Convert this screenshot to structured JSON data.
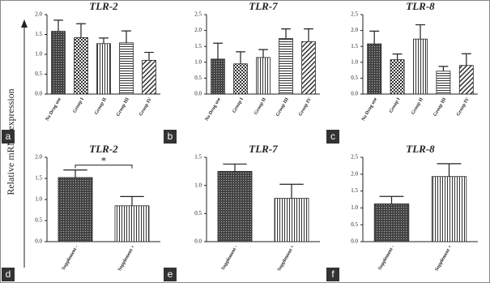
{
  "ylabel": "Relative mRNA expression",
  "chart_data": [
    {
      "type": "bar",
      "panel": "a",
      "title": "TLR-2",
      "categories": [
        "No Drug use",
        "Group I",
        "Group II",
        "Group III",
        "Group IV"
      ],
      "values": [
        1.58,
        1.42,
        1.27,
        1.29,
        0.85
      ],
      "errors": [
        0.28,
        0.35,
        0.14,
        0.3,
        0.2
      ],
      "ylim": [
        0,
        2
      ],
      "yticks": [
        {
          "value": 0,
          "label": "0.0"
        },
        0.5,
        {
          "value": 1,
          "label": "1.0"
        },
        1.5,
        {
          "value": 2,
          "label": "2.0"
        }
      ]
    },
    {
      "type": "bar",
      "panel": "b",
      "title": "TLR-7",
      "categories": [
        "No Drug use",
        "Group I",
        "Group II",
        "Group III",
        "Group IV"
      ],
      "values": [
        1.1,
        0.95,
        1.15,
        1.75,
        1.65
      ],
      "errors": [
        0.5,
        0.38,
        0.25,
        0.3,
        0.4
      ],
      "ylim": [
        0,
        2.5
      ],
      "yticks": [
        {
          "value": 0,
          "label": "0.0"
        },
        0.5,
        {
          "value": 1,
          "label": "1.0"
        },
        1.5,
        {
          "value": 2,
          "label": "2.0"
        },
        2.5
      ]
    },
    {
      "type": "bar",
      "panel": "c",
      "title": "TLR-8",
      "categories": [
        "No Drug use",
        "Group I",
        "Group II",
        "Group III",
        "Group IV"
      ],
      "values": [
        1.58,
        1.08,
        1.73,
        0.72,
        0.9
      ],
      "errors": [
        0.4,
        0.18,
        0.45,
        0.15,
        0.37
      ],
      "ylim": [
        0,
        2.5
      ],
      "yticks": [
        {
          "value": 0,
          "label": "0.0"
        },
        0.5,
        {
          "value": 1,
          "label": "1.0"
        },
        1.5,
        {
          "value": 2,
          "label": "2.0"
        },
        2.5
      ]
    },
    {
      "type": "bar",
      "panel": "d",
      "title": "TLR-2",
      "categories": [
        "Supplement -",
        "Supplement +"
      ],
      "values": [
        1.52,
        0.85
      ],
      "errors": [
        0.18,
        0.22
      ],
      "ylim": [
        0,
        2
      ],
      "yticks": [
        {
          "value": 0,
          "label": "0.0"
        },
        0.5,
        {
          "value": 1,
          "label": "1.0"
        },
        1.5,
        {
          "value": 2,
          "label": "2.0"
        }
      ],
      "annotations": [
        "*"
      ]
    },
    {
      "type": "bar",
      "panel": "e",
      "title": "TLR-7",
      "categories": [
        "Supplement -",
        "Supplement +"
      ],
      "values": [
        1.25,
        0.77
      ],
      "errors": [
        0.13,
        0.25
      ],
      "ylim": [
        0,
        1.5
      ],
      "yticks": [
        {
          "value": 0,
          "label": "0.0"
        },
        0.5,
        {
          "value": 1,
          "label": "1.0"
        },
        1.5
      ]
    },
    {
      "type": "bar",
      "panel": "f",
      "title": "TLR-8",
      "categories": [
        "Supplement -",
        "Supplement +"
      ],
      "values": [
        1.12,
        1.93
      ],
      "errors": [
        0.22,
        0.38
      ],
      "ylim": [
        0,
        2.5
      ],
      "yticks": [
        {
          "value": 0,
          "label": "0.0"
        },
        0.5,
        {
          "value": 1,
          "label": "1.0"
        },
        1.5,
        {
          "value": 2,
          "label": "2.0"
        },
        2.5
      ]
    }
  ]
}
